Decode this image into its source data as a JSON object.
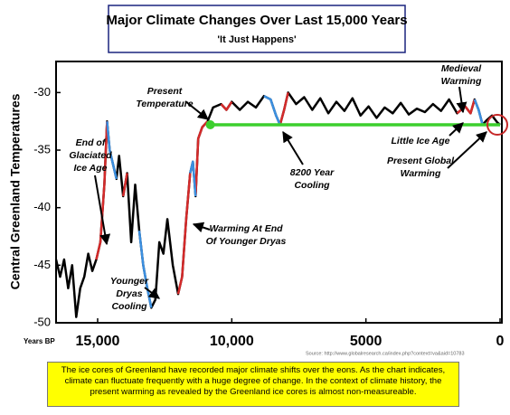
{
  "chart_data": {
    "type": "line",
    "title": "Major Climate Changes Over Last 15,000 Years",
    "subtitle": "'It Just Happens'",
    "y_label": "Central Greenland Temperatures",
    "x_label": "Years BP",
    "source": "Source: http://www.globalresearch.ca/index.php?context=va&aid=10783",
    "footnote": "The ice cores of Greenland have recorded major climate shifts over the eons. As the chart indicates, climate can fluctuate frequently with a huge degree of change. In the context of climate history, the present warming as revealed by the Greenland ice cores is almost non-measureable.",
    "xlim": [
      16550,
      0
    ],
    "xticks": [
      {
        "value": 15000,
        "label": "15,000"
      },
      {
        "value": 10000,
        "label": "10,000"
      },
      5000,
      0
    ],
    "ylim": [
      -50,
      -27.3
    ],
    "yticks": [
      -30,
      -35,
      -40,
      -45,
      -50
    ],
    "x": [
      16550,
      16400,
      16250,
      16100,
      15950,
      15800,
      15650,
      15500,
      15350,
      15200,
      15050,
      14900,
      14750,
      14650,
      14550,
      14450,
      14300,
      14200,
      14050,
      13900,
      13750,
      13600,
      13450,
      13300,
      13150,
      13000,
      12850,
      12700,
      12550,
      12400,
      12200,
      12000,
      11850,
      11700,
      11550,
      11450,
      11350,
      11250,
      11100,
      10900,
      10700,
      10400,
      10200,
      10000,
      9700,
      9400,
      9100,
      8800,
      8550,
      8350,
      8200,
      8050,
      7900,
      7600,
      7300,
      7000,
      6700,
      6400,
      6100,
      5800,
      5500,
      5200,
      4900,
      4600,
      4300,
      4000,
      3700,
      3400,
      3100,
      2800,
      2500,
      2200,
      1900,
      1600,
      1300,
      1100,
      950,
      800,
      650,
      500,
      300,
      100,
      0
    ],
    "series": [
      {
        "color": "#000000",
        "values": [
          -44.5,
          -46,
          -44.5,
          -47,
          -45,
          -49.5,
          -47,
          -46,
          -44,
          -45.5,
          -44.5,
          -43,
          -38,
          -32.5,
          -35,
          -36,
          -37.5,
          -35.5,
          -39,
          -37,
          -43,
          -38,
          -42,
          -45,
          -47,
          -48.7,
          -48,
          -43,
          -44,
          -41,
          -45,
          -47.5,
          -46,
          -41,
          -37,
          -36,
          -39,
          -34,
          -33,
          -32.5,
          -31.3,
          -31,
          -31.5,
          -30.8,
          -31.5,
          -30.8,
          -31.3,
          -30.3,
          -30.6,
          -32,
          -32.8,
          -31.5,
          -30,
          -31,
          -30.4,
          -31.5,
          -30.5,
          -31.8,
          -30.8,
          -31.6,
          -30.5,
          -32,
          -31.2,
          -32.2,
          -31.3,
          -31.8,
          -30.9,
          -31.9,
          -31.4,
          -31.7,
          -31,
          -31.6,
          -30.6,
          -31.8,
          -31.2,
          -31.8,
          -30.6,
          -31.5,
          -32.8,
          -32.4,
          -32,
          -32.6,
          -32.8
        ]
      },
      {
        "color": "#d42a2a",
        "values": [
          null,
          null,
          null,
          null,
          null,
          null,
          null,
          null,
          null,
          null,
          -44.5,
          -43,
          -38,
          -32.5,
          null,
          null,
          null,
          null,
          -39,
          -37,
          null,
          null,
          null,
          null,
          null,
          null,
          null,
          null,
          null,
          null,
          null,
          -47.5,
          -46,
          -41,
          -37,
          null,
          -39,
          -34,
          -33,
          -32.5,
          null,
          -31,
          -31.5,
          -30.8,
          null,
          null,
          null,
          null,
          null,
          null,
          -32.8,
          -31.5,
          -30,
          null,
          null,
          null,
          null,
          null,
          null,
          null,
          null,
          null,
          null,
          null,
          null,
          null,
          null,
          null,
          null,
          null,
          null,
          null,
          null,
          -31.8,
          -31.2,
          -31.8,
          -30.6,
          null,
          null,
          null,
          null,
          null,
          null
        ]
      },
      {
        "color": "#3b8fe0",
        "values": [
          null,
          null,
          null,
          null,
          null,
          null,
          null,
          null,
          null,
          null,
          null,
          null,
          null,
          -32.5,
          -35,
          -36,
          -37.5,
          null,
          null,
          null,
          null,
          null,
          -42,
          -45,
          -47,
          -48.7,
          null,
          null,
          null,
          null,
          null,
          null,
          null,
          null,
          -37,
          -36,
          -39,
          null,
          null,
          null,
          null,
          null,
          null,
          null,
          null,
          null,
          null,
          -30.3,
          -30.6,
          -32,
          -32.8,
          null,
          null,
          null,
          null,
          null,
          null,
          null,
          null,
          null,
          null,
          null,
          null,
          null,
          null,
          null,
          null,
          null,
          null,
          null,
          null,
          null,
          null,
          null,
          null,
          null,
          -30.6,
          -31.5,
          -32.8,
          null,
          null,
          null,
          null
        ]
      }
    ],
    "reference_line": {
      "y": -32.8,
      "x": [
        10800,
        0
      ],
      "color": "#3ccf2e"
    },
    "annotations": [
      [
        "End of",
        "Glaciated",
        "Ice Age"
      ],
      [
        "Present",
        "Temperature"
      ],
      [
        "Medieval",
        "Warming"
      ],
      [
        "Little Ice Age"
      ],
      [
        "8200 Year",
        "Cooling"
      ],
      [
        "Present Global",
        "Warming"
      ],
      [
        "Warming At End",
        "Of Younger Dryas"
      ],
      [
        "Younger",
        "Dryas",
        "Cooling"
      ]
    ]
  }
}
